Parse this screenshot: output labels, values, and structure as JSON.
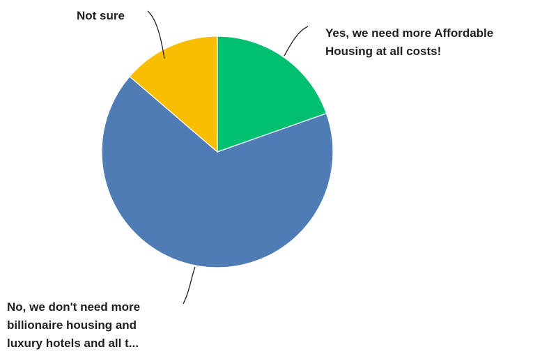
{
  "chart_data": {
    "type": "pie",
    "title": "",
    "start_angle_deg": 0,
    "direction": "clockwise",
    "slices": [
      {
        "lines": [
          "Yes, we need more Affordable",
          "Housing at all costs!"
        ],
        "value": 19.6,
        "color": "#00BF6F"
      },
      {
        "lines": [
          "No, we don't need more",
          "billionaire housing and",
          "luxury hotels and all t..."
        ],
        "value": 66.7,
        "color": "#507CB6"
      },
      {
        "lines": [
          "Not sure"
        ],
        "value": 13.7,
        "color": "#F9BE00"
      }
    ]
  }
}
